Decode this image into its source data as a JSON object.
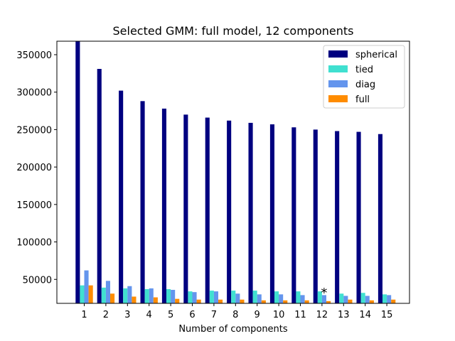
{
  "chart_data": {
    "type": "bar",
    "title": "Selected GMM: full model, 12 components",
    "xlabel": "Number of components",
    "ylabel": "",
    "categories": [
      "1",
      "2",
      "3",
      "4",
      "5",
      "6",
      "7",
      "8",
      "9",
      "10",
      "11",
      "12",
      "13",
      "14",
      "15"
    ],
    "ylim": [
      18000,
      368000
    ],
    "yticks": [
      50000,
      100000,
      150000,
      200000,
      250000,
      300000,
      350000
    ],
    "grid": false,
    "legend_position": "top-right",
    "series": [
      {
        "name": "spherical",
        "color": "#000080",
        "values": [
          368000,
          331000,
          302000,
          288000,
          278000,
          270000,
          266000,
          262000,
          259000,
          257000,
          253000,
          250000,
          248000,
          247000,
          244000
        ]
      },
      {
        "name": "tied",
        "color": "#40e0d0",
        "values": [
          42000,
          39000,
          38000,
          37000,
          37000,
          34000,
          35000,
          35000,
          35000,
          34000,
          34000,
          34000,
          31000,
          32000,
          30000
        ]
      },
      {
        "name": "diag",
        "color": "#6495ed",
        "values": [
          62000,
          48000,
          41000,
          38000,
          36000,
          33000,
          34000,
          31000,
          30000,
          30000,
          29000,
          29000,
          28000,
          28000,
          29000
        ]
      },
      {
        "name": "full",
        "color": "#ff8c00",
        "values": [
          42000,
          31000,
          27000,
          26000,
          24000,
          23000,
          23000,
          23000,
          22000,
          22000,
          22000,
          21000,
          23000,
          22000,
          23000
        ]
      }
    ],
    "annotations": [
      {
        "text": "*",
        "category": "12",
        "y": 38000
      }
    ]
  }
}
